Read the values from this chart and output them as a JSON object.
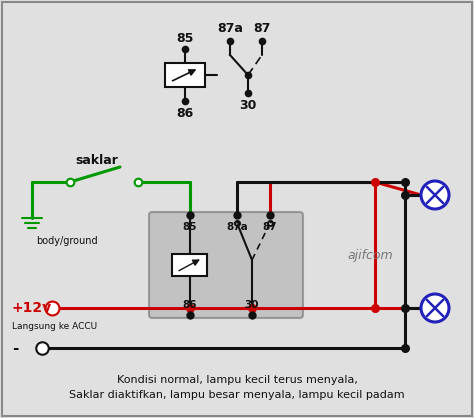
{
  "bg_color": "#e0e0e0",
  "border_color": "#888888",
  "caption_line1": "Kondisi normal, lampu kecil terus menyala,",
  "caption_line2": "Saklar diaktifkan, lampu besar menyala, lampu kecil padam",
  "watermark": "ajifcom",
  "relay_box_color": "#aaaaaa",
  "green_color": "#009900",
  "red_color": "#cc0000",
  "black_color": "#111111",
  "blue_color": "#2222bb",
  "white_color": "#ffffff",
  "switch_label": "saklar",
  "ground_label": "body/ground",
  "plus12v_label": "+12v",
  "accu_label": "Langsung ke ACCU",
  "minus_label": "-"
}
